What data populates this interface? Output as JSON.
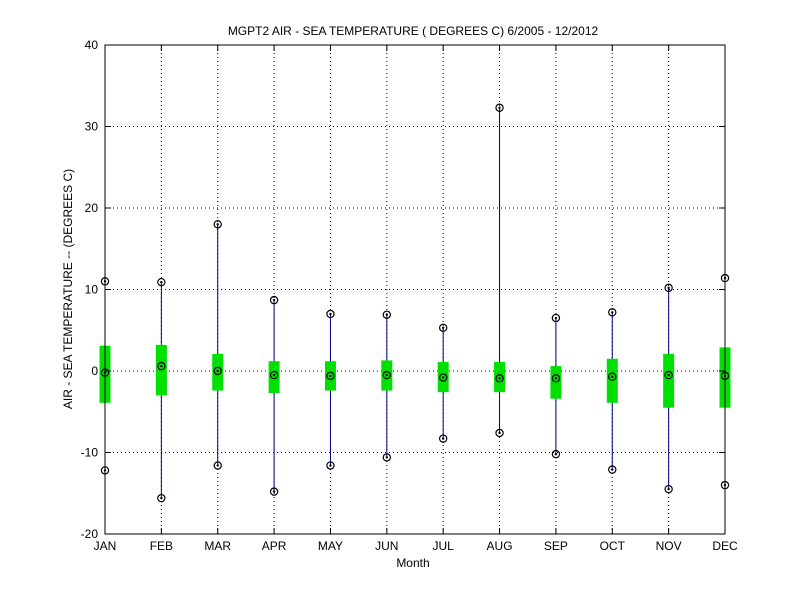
{
  "chart_data": {
    "type": "boxplot",
    "title": "MGPT2  AIR - SEA TEMPERATURE ( DEGREES C) 6/2005 - 12/2012",
    "xlabel": "Month",
    "ylabel": "AIR - SEA TEMPERATURE -- (DEGREES C)",
    "ylim": [
      -20,
      40
    ],
    "yticks": [
      -20,
      -10,
      0,
      10,
      20,
      30,
      40
    ],
    "ytick_labels": [
      "-20",
      "-10",
      "0",
      "10",
      "20",
      "30",
      "40"
    ],
    "grid": true,
    "categories": [
      "JAN",
      "FEB",
      "MAR",
      "APR",
      "MAY",
      "JUN",
      "JUL",
      "AUG",
      "SEP",
      "OCT",
      "NOV",
      "DEC"
    ],
    "series": [
      {
        "max": [
          11.0,
          10.9,
          18.0,
          8.7,
          7.0,
          6.9,
          5.3,
          32.3,
          6.5,
          7.2,
          10.2,
          11.4
        ],
        "q3": [
          3.1,
          3.2,
          2.1,
          1.2,
          1.2,
          1.3,
          1.1,
          1.1,
          0.6,
          1.5,
          2.1,
          2.9
        ],
        "mean": [
          -0.2,
          0.6,
          0.0,
          -0.5,
          -0.6,
          -0.5,
          -0.8,
          -0.9,
          -0.9,
          -0.7,
          -0.5,
          -0.6
        ],
        "q1": [
          -3.9,
          -3.0,
          -2.4,
          -2.7,
          -2.4,
          -2.4,
          -2.6,
          -2.6,
          -3.4,
          -3.9,
          -4.5,
          -4.5
        ],
        "min": [
          -12.2,
          -15.6,
          -11.6,
          -14.8,
          -11.6,
          -10.6,
          -8.3,
          -7.6,
          -10.2,
          -12.1,
          -14.5,
          -14.0
        ]
      }
    ],
    "colors": {
      "whisker": "#00008b",
      "box": "#00e000",
      "marker": "#000000",
      "axis": "#000000",
      "grid": "#000000"
    }
  }
}
